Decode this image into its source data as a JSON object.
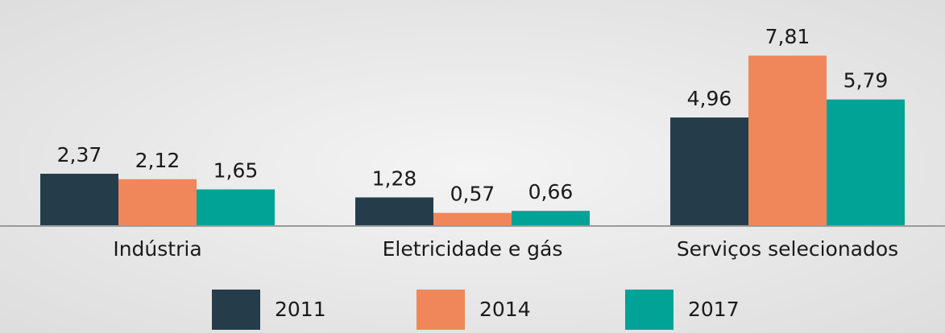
{
  "chart_data": {
    "type": "bar",
    "categories": [
      "Indústria",
      "Eletricidade e gás",
      "Serviços selecionados"
    ],
    "series": [
      {
        "name": "2011",
        "color": "#253d4a",
        "values": [
          2.37,
          1.28,
          4.96
        ],
        "value_labels": [
          "2,37",
          "1,28",
          "4,96"
        ]
      },
      {
        "name": "2014",
        "color": "#f0875a",
        "values": [
          2.12,
          0.57,
          7.81
        ],
        "value_labels": [
          "2,12",
          "0,57",
          "7,81"
        ]
      },
      {
        "name": "2017",
        "color": "#00a396",
        "values": [
          1.65,
          0.66,
          5.79
        ],
        "value_labels": [
          "1,65",
          "0,66",
          "5,79"
        ]
      }
    ],
    "ylim": [
      0,
      10
    ]
  }
}
